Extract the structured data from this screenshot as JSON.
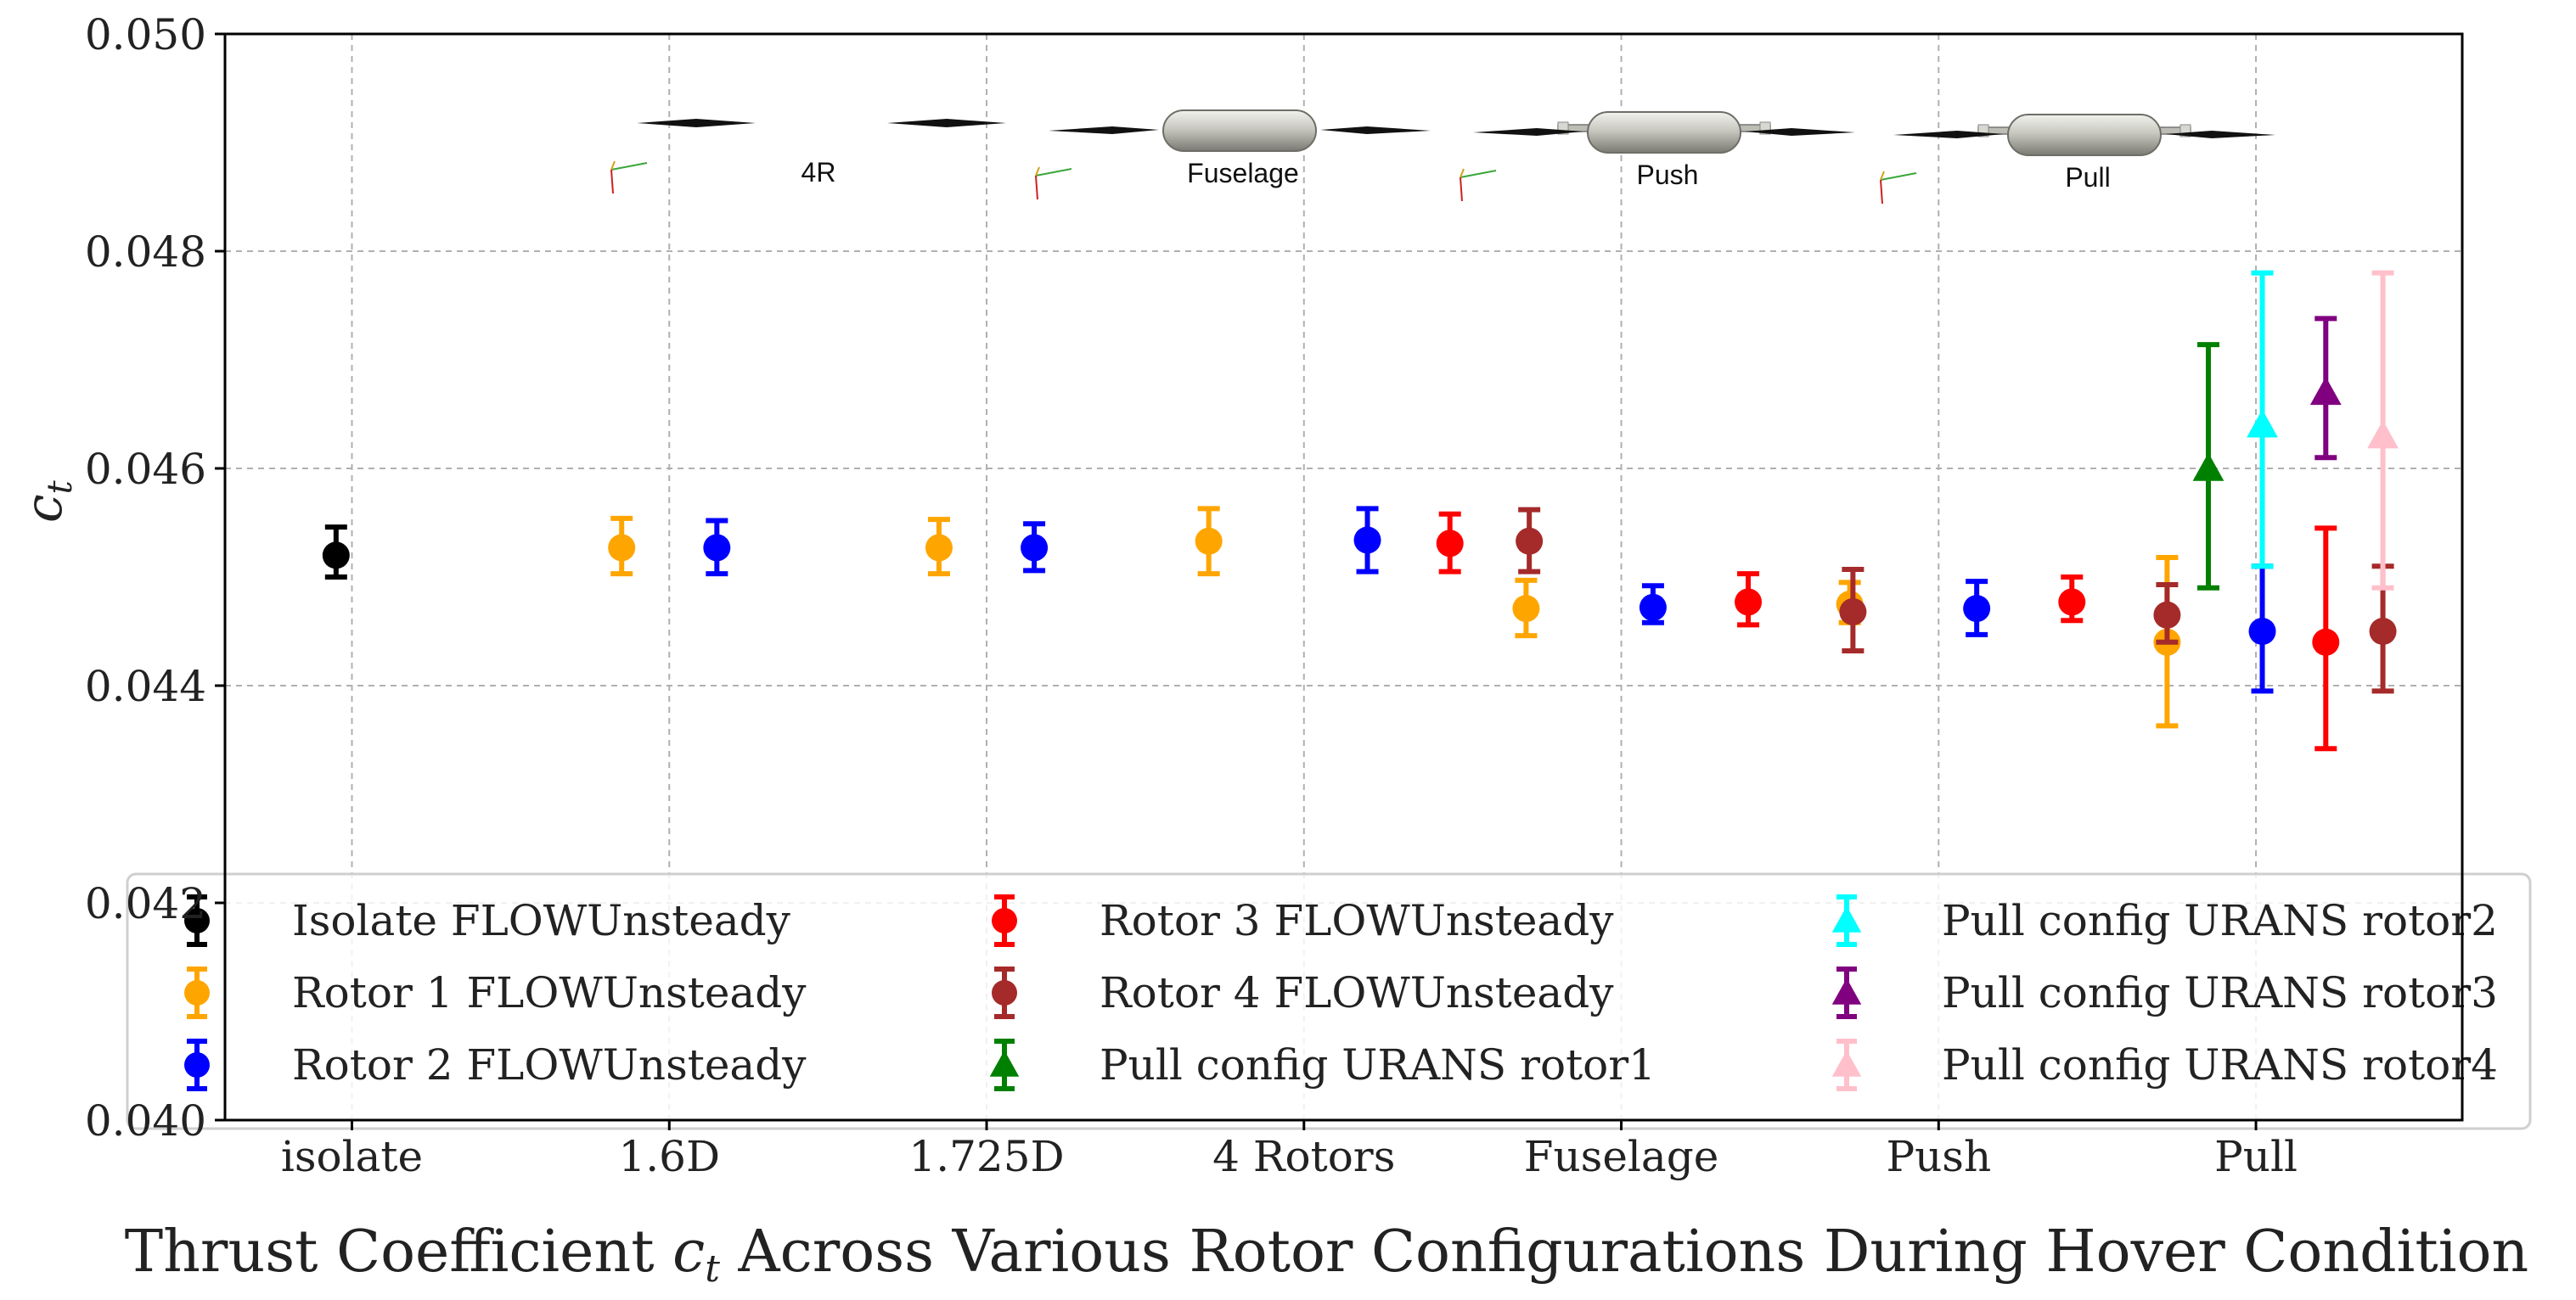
{
  "chart_data": {
    "type": "scatter",
    "title": "",
    "xlabel": "Thrust Coefficient c_t Across Various Rotor Configurations During Hover Condition",
    "xlabel_parts": {
      "before": "Thrust Coefficient ",
      "symbol": "c",
      "subscript": "t",
      "after": " Across Various Rotor Configurations During Hover Condition"
    },
    "ylabel": "c_t",
    "ylabel_parts": {
      "symbol": "c",
      "subscript": "t"
    },
    "ylim": [
      0.04,
      0.05
    ],
    "yticks": [
      0.04,
      0.042,
      0.044,
      0.046,
      0.048,
      0.05
    ],
    "ytick_labels": [
      "0.040",
      "0.042",
      "0.044",
      "0.046",
      "0.048",
      "0.050"
    ],
    "grid": true,
    "categories": [
      "isolate",
      "1.6D",
      "1.725D",
      "4 Rotors",
      "Fuselage",
      "Push",
      "Pull"
    ],
    "category_x": [
      0,
      1,
      2,
      3,
      4,
      5,
      6
    ],
    "xlim": [
      -0.4,
      6.65
    ],
    "legend_location": "lower-center",
    "legend_columns": 3,
    "series": [
      {
        "name": "Isolate FLOWUnsteady",
        "color": "#000000",
        "marker": "circle",
        "points": [
          {
            "x": -0.05,
            "y": 0.0452,
            "lo": 0.045,
            "hi": 0.04546
          }
        ]
      },
      {
        "name": "Rotor 1 FLOWUnsteady",
        "color": "#ffa500",
        "marker": "circle",
        "points": [
          {
            "x": 0.85,
            "y": 0.04527,
            "lo": 0.04503,
            "hi": 0.04554
          },
          {
            "x": 1.85,
            "y": 0.04527,
            "lo": 0.04503,
            "hi": 0.04553
          },
          {
            "x": 2.7,
            "y": 0.04533,
            "lo": 0.04503,
            "hi": 0.04563
          },
          {
            "x": 3.7,
            "y": 0.04471,
            "lo": 0.04446,
            "hi": 0.04497
          },
          {
            "x": 4.72,
            "y": 0.04475,
            "lo": 0.04458,
            "hi": 0.04495
          },
          {
            "x": 5.72,
            "y": 0.0444,
            "lo": 0.04363,
            "hi": 0.04518
          }
        ]
      },
      {
        "name": "Rotor 2 FLOWUnsteady",
        "color": "#0000ff",
        "marker": "circle",
        "points": [
          {
            "x": 1.15,
            "y": 0.04527,
            "lo": 0.04503,
            "hi": 0.04552
          },
          {
            "x": 2.15,
            "y": 0.04527,
            "lo": 0.04506,
            "hi": 0.04549
          },
          {
            "x": 3.2,
            "y": 0.04534,
            "lo": 0.04505,
            "hi": 0.04563
          },
          {
            "x": 4.1,
            "y": 0.04472,
            "lo": 0.04458,
            "hi": 0.04492
          },
          {
            "x": 5.12,
            "y": 0.04471,
            "lo": 0.04447,
            "hi": 0.04496
          },
          {
            "x": 6.02,
            "y": 0.0445,
            "lo": 0.04395,
            "hi": 0.0451
          }
        ]
      },
      {
        "name": "Rotor 3 FLOWUnsteady",
        "color": "#ff0000",
        "marker": "circle",
        "points": [
          {
            "x": 3.46,
            "y": 0.04531,
            "lo": 0.04505,
            "hi": 0.04558
          },
          {
            "x": 4.4,
            "y": 0.04477,
            "lo": 0.04456,
            "hi": 0.04503
          },
          {
            "x": 5.42,
            "y": 0.04477,
            "lo": 0.0446,
            "hi": 0.045
          },
          {
            "x": 6.22,
            "y": 0.0444,
            "lo": 0.04342,
            "hi": 0.04545
          }
        ]
      },
      {
        "name": "Rotor 4 FLOWUnsteady",
        "color": "#a52a2a",
        "marker": "circle",
        "points": [
          {
            "x": 3.71,
            "y": 0.04533,
            "lo": 0.04505,
            "hi": 0.04562
          },
          {
            "x": 4.73,
            "y": 0.04468,
            "lo": 0.04432,
            "hi": 0.04507
          },
          {
            "x": 5.72,
            "y": 0.04465,
            "lo": 0.0444,
            "hi": 0.04493
          },
          {
            "x": 6.4,
            "y": 0.0445,
            "lo": 0.04395,
            "hi": 0.0451
          }
        ]
      },
      {
        "name": "Pull config URANS rotor1",
        "color": "#008000",
        "marker": "triangle",
        "points": [
          {
            "x": 5.85,
            "y": 0.046,
            "lo": 0.0449,
            "hi": 0.04714
          }
        ]
      },
      {
        "name": "Pull config URANS rotor2",
        "color": "#00ffff",
        "marker": "triangle",
        "points": [
          {
            "x": 6.02,
            "y": 0.0464,
            "lo": 0.0451,
            "hi": 0.0478
          }
        ]
      },
      {
        "name": "Pull config URANS rotor3",
        "color": "#800080",
        "marker": "triangle",
        "points": [
          {
            "x": 6.22,
            "y": 0.0467,
            "lo": 0.0461,
            "hi": 0.04738
          }
        ]
      },
      {
        "name": "Pull config URANS rotor4",
        "color": "#ffc0cb",
        "marker": "triangle",
        "points": [
          {
            "x": 6.4,
            "y": 0.0463,
            "lo": 0.0449,
            "hi": 0.0478
          }
        ]
      }
    ],
    "legend_order": [
      0,
      1,
      2,
      3,
      4,
      5,
      6,
      7,
      8
    ],
    "inset_images": [
      {
        "caption": "4R",
        "has_fuselage": false,
        "booms": false
      },
      {
        "caption": "Fuselage",
        "has_fuselage": true,
        "booms": false
      },
      {
        "caption": "Push",
        "has_fuselage": true,
        "booms": true
      },
      {
        "caption": "Pull",
        "has_fuselage": true,
        "booms": true
      }
    ]
  }
}
